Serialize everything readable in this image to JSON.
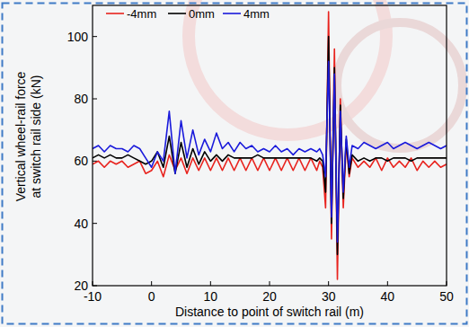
{
  "chart_data": {
    "type": "line",
    "x_label": "Distance to point of switch rail (m)",
    "y_label": [
      "Vertical wheel-rail force",
      "at switch rail side (kN)"
    ],
    "x": [
      -10,
      -9,
      -8,
      -7,
      -6,
      -5,
      -4,
      -3,
      -2,
      -1,
      0,
      1,
      2,
      3,
      4,
      5,
      6,
      7,
      8,
      9,
      10,
      11,
      12,
      13,
      14,
      15,
      16,
      17,
      18,
      19,
      20,
      21,
      22,
      23,
      24,
      25,
      26,
      27,
      28,
      28.5,
      29,
      29.5,
      30,
      30.5,
      31,
      31.5,
      32,
      32.5,
      33,
      33.5,
      34,
      35,
      36,
      37,
      38,
      39,
      40,
      41,
      42,
      43,
      44,
      45,
      46,
      47,
      48,
      49,
      50
    ],
    "series": [
      {
        "name": "-4mm",
        "color": "#e8231e",
        "values": [
          59,
          60,
          58,
          60,
          59,
          60,
          58,
          59,
          60,
          56,
          57,
          60,
          55,
          62,
          57,
          61,
          56,
          61,
          57,
          61,
          57,
          61,
          57,
          61,
          57,
          61,
          57,
          61,
          57,
          61,
          57,
          61,
          57,
          61,
          57,
          61,
          57,
          61,
          57,
          60,
          58,
          45,
          108,
          35,
          96,
          22,
          80,
          45,
          66,
          55,
          61,
          58,
          60,
          58,
          61,
          57,
          61,
          58,
          60,
          58,
          61,
          57,
          60,
          58,
          60,
          58,
          59
        ]
      },
      {
        "name": "0mm",
        "color": "#000000",
        "values": [
          61,
          62,
          61,
          62,
          61,
          61,
          62,
          61,
          60,
          59,
          60,
          63,
          58,
          68,
          56,
          66,
          58,
          64,
          59,
          63,
          60,
          62,
          60,
          62,
          61,
          61,
          61,
          61,
          62,
          61,
          61,
          61,
          61,
          61,
          61,
          61,
          61,
          61,
          60,
          61,
          60,
          50,
          100,
          40,
          90,
          30,
          78,
          48,
          67,
          56,
          62,
          60,
          61,
          60,
          61,
          61,
          60,
          61,
          61,
          61,
          60,
          61,
          61,
          61,
          61,
          61,
          61
        ]
      },
      {
        "name": "4mm",
        "color": "#1a1adb",
        "values": [
          64,
          65,
          63,
          65,
          64,
          64,
          63,
          65,
          64,
          61,
          58,
          63,
          60,
          76,
          56,
          73,
          61,
          70,
          62,
          67,
          63,
          69,
          64,
          66,
          63,
          66,
          64,
          65,
          63,
          64,
          63,
          65,
          63,
          64,
          62,
          64,
          63,
          64,
          63,
          64,
          62,
          55,
          92,
          42,
          88,
          34,
          76,
          50,
          68,
          58,
          65,
          64,
          66,
          65,
          64,
          65,
          66,
          64,
          65,
          66,
          65,
          64,
          65,
          66,
          65,
          64,
          65
        ]
      }
    ],
    "xlim": [
      -10,
      50
    ],
    "xticks": [
      -10,
      0,
      10,
      20,
      30,
      40,
      50
    ],
    "ylim": [
      20,
      110
    ],
    "yticks": [
      20,
      40,
      60,
      80,
      100
    ],
    "legend": "top-left",
    "grid": false
  }
}
